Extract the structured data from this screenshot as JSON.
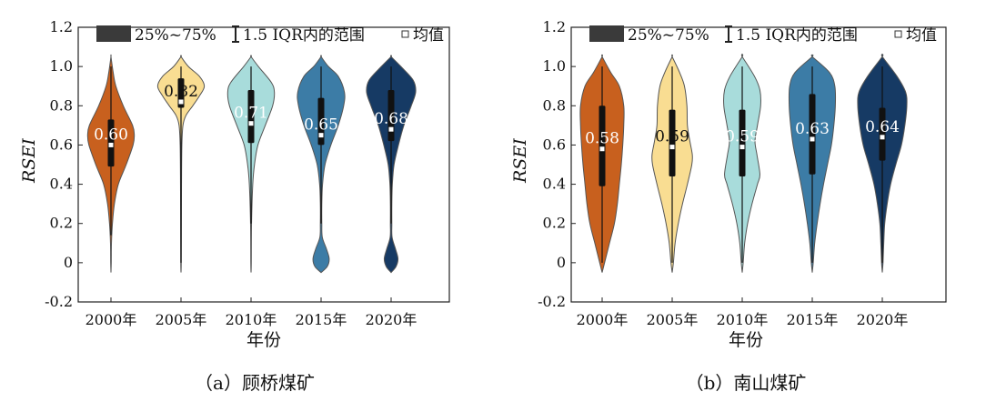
{
  "colors": [
    "#C8601E",
    "#F9DD92",
    "#A8DCDB",
    "#3C7CA6",
    "#163A64"
  ],
  "axis_title_y": "RSEI",
  "axis_title_x": "年份",
  "legend": {
    "box_label": "25%~75%",
    "whisker_label": "1.5 IQR内的范围",
    "mean_label": "均值"
  },
  "chart_data": [
    {
      "type": "violin",
      "caption": "（a）顾桥煤矿",
      "ylabel": "RSEI",
      "xlabel": "年份",
      "ylim": [
        -0.2,
        1.2
      ],
      "yticks": [
        "-0.2",
        "0",
        "0.2",
        "0.4",
        "0.6",
        "0.8",
        "1.0",
        "1.2"
      ],
      "categories": [
        "2000年",
        "2005年",
        "2010年",
        "2015年",
        "2020年"
      ],
      "series": [
        {
          "name": "2000年",
          "mean": 0.6,
          "mean_label": "0.60",
          "q1": 0.49,
          "q3": 0.73,
          "whisker_low": 0.14,
          "whisker_high": 1.0,
          "min": -0.05,
          "max": 1.05,
          "profile": [
            [
              -0.05,
              0.0
            ],
            [
              0.0,
              0.012
            ],
            [
              0.1,
              0.02
            ],
            [
              0.2,
              0.06
            ],
            [
              0.3,
              0.14
            ],
            [
              0.4,
              0.3
            ],
            [
              0.5,
              0.62
            ],
            [
              0.6,
              0.9
            ],
            [
              0.65,
              0.95
            ],
            [
              0.7,
              0.88
            ],
            [
              0.8,
              0.5
            ],
            [
              0.9,
              0.2
            ],
            [
              0.97,
              0.09
            ],
            [
              1.05,
              0.0
            ]
          ]
        },
        {
          "name": "2005年",
          "mean": 0.82,
          "mean_label": "0.82",
          "q1": 0.79,
          "q3": 0.94,
          "whisker_low": 0.0,
          "whisker_high": 1.0,
          "min": -0.05,
          "max": 1.05,
          "profile": [
            [
              -0.05,
              0.0
            ],
            [
              0.0,
              0.01
            ],
            [
              0.2,
              0.015
            ],
            [
              0.4,
              0.02
            ],
            [
              0.6,
              0.035
            ],
            [
              0.7,
              0.08
            ],
            [
              0.75,
              0.2
            ],
            [
              0.8,
              0.48
            ],
            [
              0.85,
              0.75
            ],
            [
              0.9,
              0.95
            ],
            [
              0.95,
              0.75
            ],
            [
              1.0,
              0.3
            ],
            [
              1.05,
              0.0
            ]
          ]
        },
        {
          "name": "2010年",
          "mean": 0.71,
          "mean_label": "0.71",
          "q1": 0.61,
          "q3": 0.88,
          "whisker_low": 0.2,
          "whisker_high": 1.0,
          "min": -0.05,
          "max": 1.05,
          "profile": [
            [
              -0.05,
              0.0
            ],
            [
              0.0,
              0.01
            ],
            [
              0.2,
              0.02
            ],
            [
              0.4,
              0.07
            ],
            [
              0.5,
              0.14
            ],
            [
              0.6,
              0.28
            ],
            [
              0.7,
              0.58
            ],
            [
              0.8,
              0.88
            ],
            [
              0.87,
              0.95
            ],
            [
              0.92,
              0.82
            ],
            [
              1.0,
              0.3
            ],
            [
              1.05,
              0.0
            ]
          ]
        },
        {
          "name": "2015年",
          "mean": 0.65,
          "mean_label": "0.65",
          "q1": 0.6,
          "q3": 0.84,
          "whisker_low": 0.2,
          "whisker_high": 1.0,
          "min": -0.05,
          "max": 1.05,
          "profile": [
            [
              -0.05,
              0.0
            ],
            [
              -0.02,
              0.25
            ],
            [
              0.02,
              0.33
            ],
            [
              0.07,
              0.22
            ],
            [
              0.13,
              0.05
            ],
            [
              0.2,
              0.03
            ],
            [
              0.3,
              0.03
            ],
            [
              0.4,
              0.06
            ],
            [
              0.5,
              0.16
            ],
            [
              0.6,
              0.4
            ],
            [
              0.7,
              0.7
            ],
            [
              0.8,
              0.92
            ],
            [
              0.87,
              0.95
            ],
            [
              0.95,
              0.7
            ],
            [
              1.0,
              0.3
            ],
            [
              1.05,
              0.0
            ]
          ]
        },
        {
          "name": "2020年",
          "mean": 0.68,
          "mean_label": "0.68",
          "q1": 0.62,
          "q3": 0.88,
          "whisker_low": 0.2,
          "whisker_high": 1.0,
          "min": -0.05,
          "max": 1.05,
          "profile": [
            [
              -0.05,
              0.0
            ],
            [
              -0.02,
              0.2
            ],
            [
              0.02,
              0.28
            ],
            [
              0.07,
              0.18
            ],
            [
              0.13,
              0.04
            ],
            [
              0.2,
              0.03
            ],
            [
              0.3,
              0.03
            ],
            [
              0.4,
              0.05
            ],
            [
              0.5,
              0.12
            ],
            [
              0.6,
              0.3
            ],
            [
              0.7,
              0.52
            ],
            [
              0.8,
              0.82
            ],
            [
              0.87,
              1.0
            ],
            [
              0.93,
              0.9
            ],
            [
              1.0,
              0.4
            ],
            [
              1.05,
              0.0
            ]
          ]
        }
      ]
    },
    {
      "type": "violin",
      "caption": "（b）南山煤矿",
      "ylabel": "RSEI",
      "xlabel": "年份",
      "ylim": [
        -0.2,
        1.2
      ],
      "yticks": [
        "-0.2",
        "0",
        "0.2",
        "0.4",
        "0.6",
        "0.8",
        "1.0",
        "1.2"
      ],
      "categories": [
        "2000年",
        "2005年",
        "2010年",
        "2015年",
        "2020年"
      ],
      "series": [
        {
          "name": "2000年",
          "mean": 0.58,
          "mean_label": "0.58",
          "q1": 0.39,
          "q3": 0.8,
          "whisker_low": 0.0,
          "whisker_high": 1.0,
          "min": -0.05,
          "max": 1.05,
          "profile": [
            [
              -0.05,
              0.0
            ],
            [
              0.0,
              0.1
            ],
            [
              0.1,
              0.3
            ],
            [
              0.2,
              0.5
            ],
            [
              0.3,
              0.62
            ],
            [
              0.4,
              0.7
            ],
            [
              0.5,
              0.78
            ],
            [
              0.6,
              0.84
            ],
            [
              0.7,
              0.88
            ],
            [
              0.8,
              0.88
            ],
            [
              0.9,
              0.7
            ],
            [
              0.97,
              0.35
            ],
            [
              1.05,
              0.0
            ]
          ]
        },
        {
          "name": "2005年",
          "mean": 0.59,
          "mean_label": "0.59",
          "q1": 0.44,
          "q3": 0.78,
          "whisker_low": 0.0,
          "whisker_high": 1.0,
          "min": -0.05,
          "max": 1.05,
          "profile": [
            [
              -0.05,
              0.0
            ],
            [
              0.0,
              0.05
            ],
            [
              0.1,
              0.12
            ],
            [
              0.2,
              0.25
            ],
            [
              0.3,
              0.42
            ],
            [
              0.4,
              0.62
            ],
            [
              0.5,
              0.8
            ],
            [
              0.55,
              0.82
            ],
            [
              0.62,
              0.72
            ],
            [
              0.7,
              0.62
            ],
            [
              0.8,
              0.6
            ],
            [
              0.9,
              0.5
            ],
            [
              0.97,
              0.3
            ],
            [
              1.05,
              0.0
            ]
          ]
        },
        {
          "name": "2010年",
          "mean": 0.59,
          "mean_label": "0.59",
          "q1": 0.44,
          "q3": 0.78,
          "whisker_low": 0.0,
          "whisker_high": 1.0,
          "min": -0.05,
          "max": 1.05,
          "profile": [
            [
              -0.05,
              0.0
            ],
            [
              0.0,
              0.04
            ],
            [
              0.1,
              0.1
            ],
            [
              0.2,
              0.22
            ],
            [
              0.3,
              0.4
            ],
            [
              0.4,
              0.62
            ],
            [
              0.45,
              0.72
            ],
            [
              0.55,
              0.6
            ],
            [
              0.62,
              0.52
            ],
            [
              0.7,
              0.62
            ],
            [
              0.8,
              0.75
            ],
            [
              0.88,
              0.72
            ],
            [
              0.95,
              0.5
            ],
            [
              1.05,
              0.0
            ]
          ]
        },
        {
          "name": "2015年",
          "mean": 0.63,
          "mean_label": "0.63",
          "q1": 0.45,
          "q3": 0.86,
          "whisker_low": 0.0,
          "whisker_high": 1.0,
          "min": -0.05,
          "max": 1.05,
          "profile": [
            [
              -0.05,
              0.0
            ],
            [
              0.0,
              0.04
            ],
            [
              0.1,
              0.1
            ],
            [
              0.2,
              0.2
            ],
            [
              0.3,
              0.32
            ],
            [
              0.4,
              0.46
            ],
            [
              0.5,
              0.62
            ],
            [
              0.6,
              0.78
            ],
            [
              0.7,
              0.88
            ],
            [
              0.8,
              0.94
            ],
            [
              0.9,
              0.92
            ],
            [
              0.97,
              0.7
            ],
            [
              1.05,
              0.0
            ]
          ]
        },
        {
          "name": "2020年",
          "mean": 0.64,
          "mean_label": "0.64",
          "q1": 0.52,
          "q3": 0.79,
          "whisker_low": 0.0,
          "whisker_high": 1.0,
          "min": -0.05,
          "max": 1.05,
          "profile": [
            [
              -0.05,
              0.0
            ],
            [
              0.0,
              0.03
            ],
            [
              0.1,
              0.06
            ],
            [
              0.2,
              0.1
            ],
            [
              0.3,
              0.2
            ],
            [
              0.4,
              0.34
            ],
            [
              0.5,
              0.55
            ],
            [
              0.6,
              0.78
            ],
            [
              0.7,
              0.92
            ],
            [
              0.8,
              1.0
            ],
            [
              0.87,
              0.95
            ],
            [
              0.95,
              0.6
            ],
            [
              1.05,
              0.0
            ]
          ]
        }
      ]
    }
  ]
}
